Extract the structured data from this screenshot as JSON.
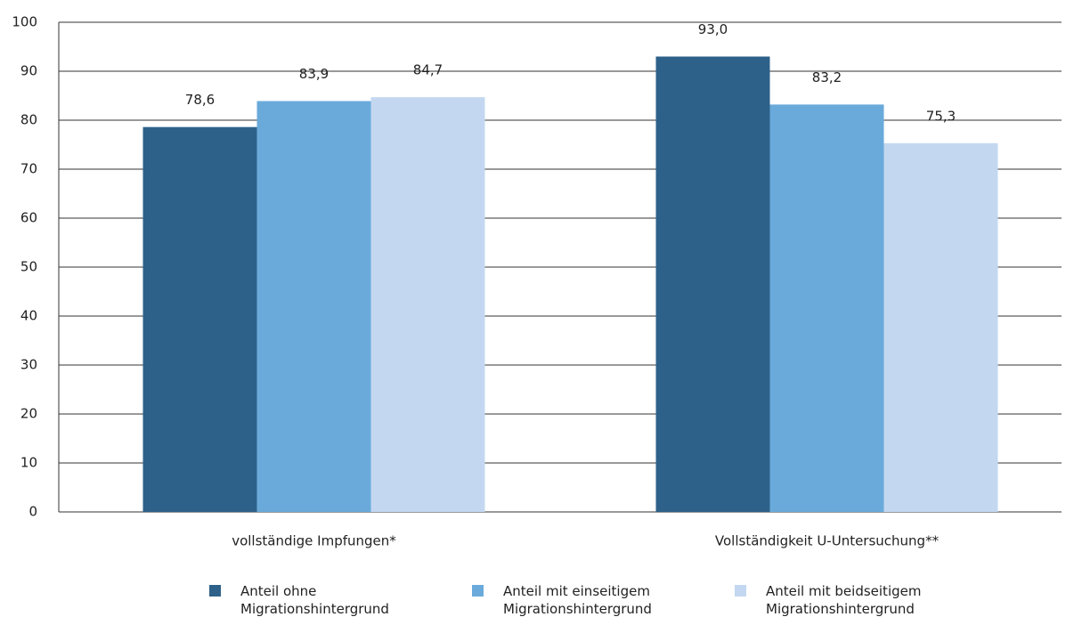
{
  "chart_data": {
    "type": "bar",
    "categories": [
      "vollständige Impfungen*",
      "Vollständigkeit U-Untersuchung**"
    ],
    "series": [
      {
        "name": "Anteil ohne Migrationshintergrund",
        "color": "#2e6189",
        "values": [
          78.6,
          93.0
        ],
        "value_labels": [
          "78,6",
          "93,0"
        ]
      },
      {
        "name": "Anteil mit einseitigem Migrationshintergrund",
        "color": "#6aaadb",
        "values": [
          83.9,
          83.2
        ],
        "value_labels": [
          "83,9",
          "83,2"
        ]
      },
      {
        "name": "Anteil mit beidseitigem Migrationshintergrund",
        "color": "#c3d7f0",
        "values": [
          84.7,
          75.3
        ],
        "value_labels": [
          "84,7",
          "75,3"
        ]
      }
    ],
    "ylim": [
      0,
      100
    ],
    "yticks": [
      0,
      10,
      20,
      30,
      40,
      50,
      60,
      70,
      80,
      90,
      100
    ],
    "grid": true
  }
}
